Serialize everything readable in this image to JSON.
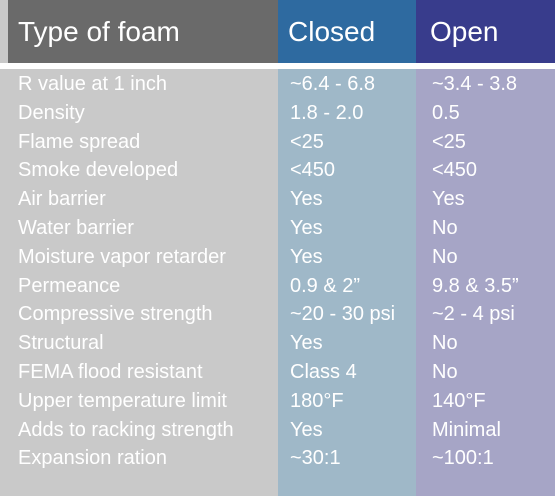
{
  "header": {
    "label": "Type of foam",
    "closed": "Closed",
    "open": "Open"
  },
  "rows": [
    {
      "label": "R value at 1 inch",
      "closed": "~6.4 - 6.8",
      "open": "~3.4 - 3.8"
    },
    {
      "label": "Density",
      "closed": "1.8 - 2.0",
      "open": "0.5"
    },
    {
      "label": "Flame spread",
      "closed": "<25",
      "open": "<25"
    },
    {
      "label": "Smoke developed",
      "closed": "<450",
      "open": "<450"
    },
    {
      "label": "Air barrier",
      "closed": "Yes",
      "open": "Yes"
    },
    {
      "label": "Water barrier",
      "closed": "Yes",
      "open": "No"
    },
    {
      "label": "Moisture vapor retarder",
      "closed": "Yes",
      "open": "No"
    },
    {
      "label": "Permeance",
      "closed": "0.9 & 2”",
      "open": "9.8 & 3.5”"
    },
    {
      "label": "Compressive strength",
      "closed": "~20 - 30 psi",
      "open": "~2 - 4 psi"
    },
    {
      "label": "Structural",
      "closed": "Yes",
      "open": "No"
    },
    {
      "label": "FEMA flood resistant",
      "closed": "Class 4",
      "open": "No"
    },
    {
      "label": "Upper temperature limit",
      "closed": "180°F",
      "open": "140°F"
    },
    {
      "label": "Adds to racking strength",
      "closed": "Yes",
      "open": "Minimal"
    },
    {
      "label": "Expansion ration",
      "closed": "~30:1",
      "open": "~100:1"
    }
  ]
}
